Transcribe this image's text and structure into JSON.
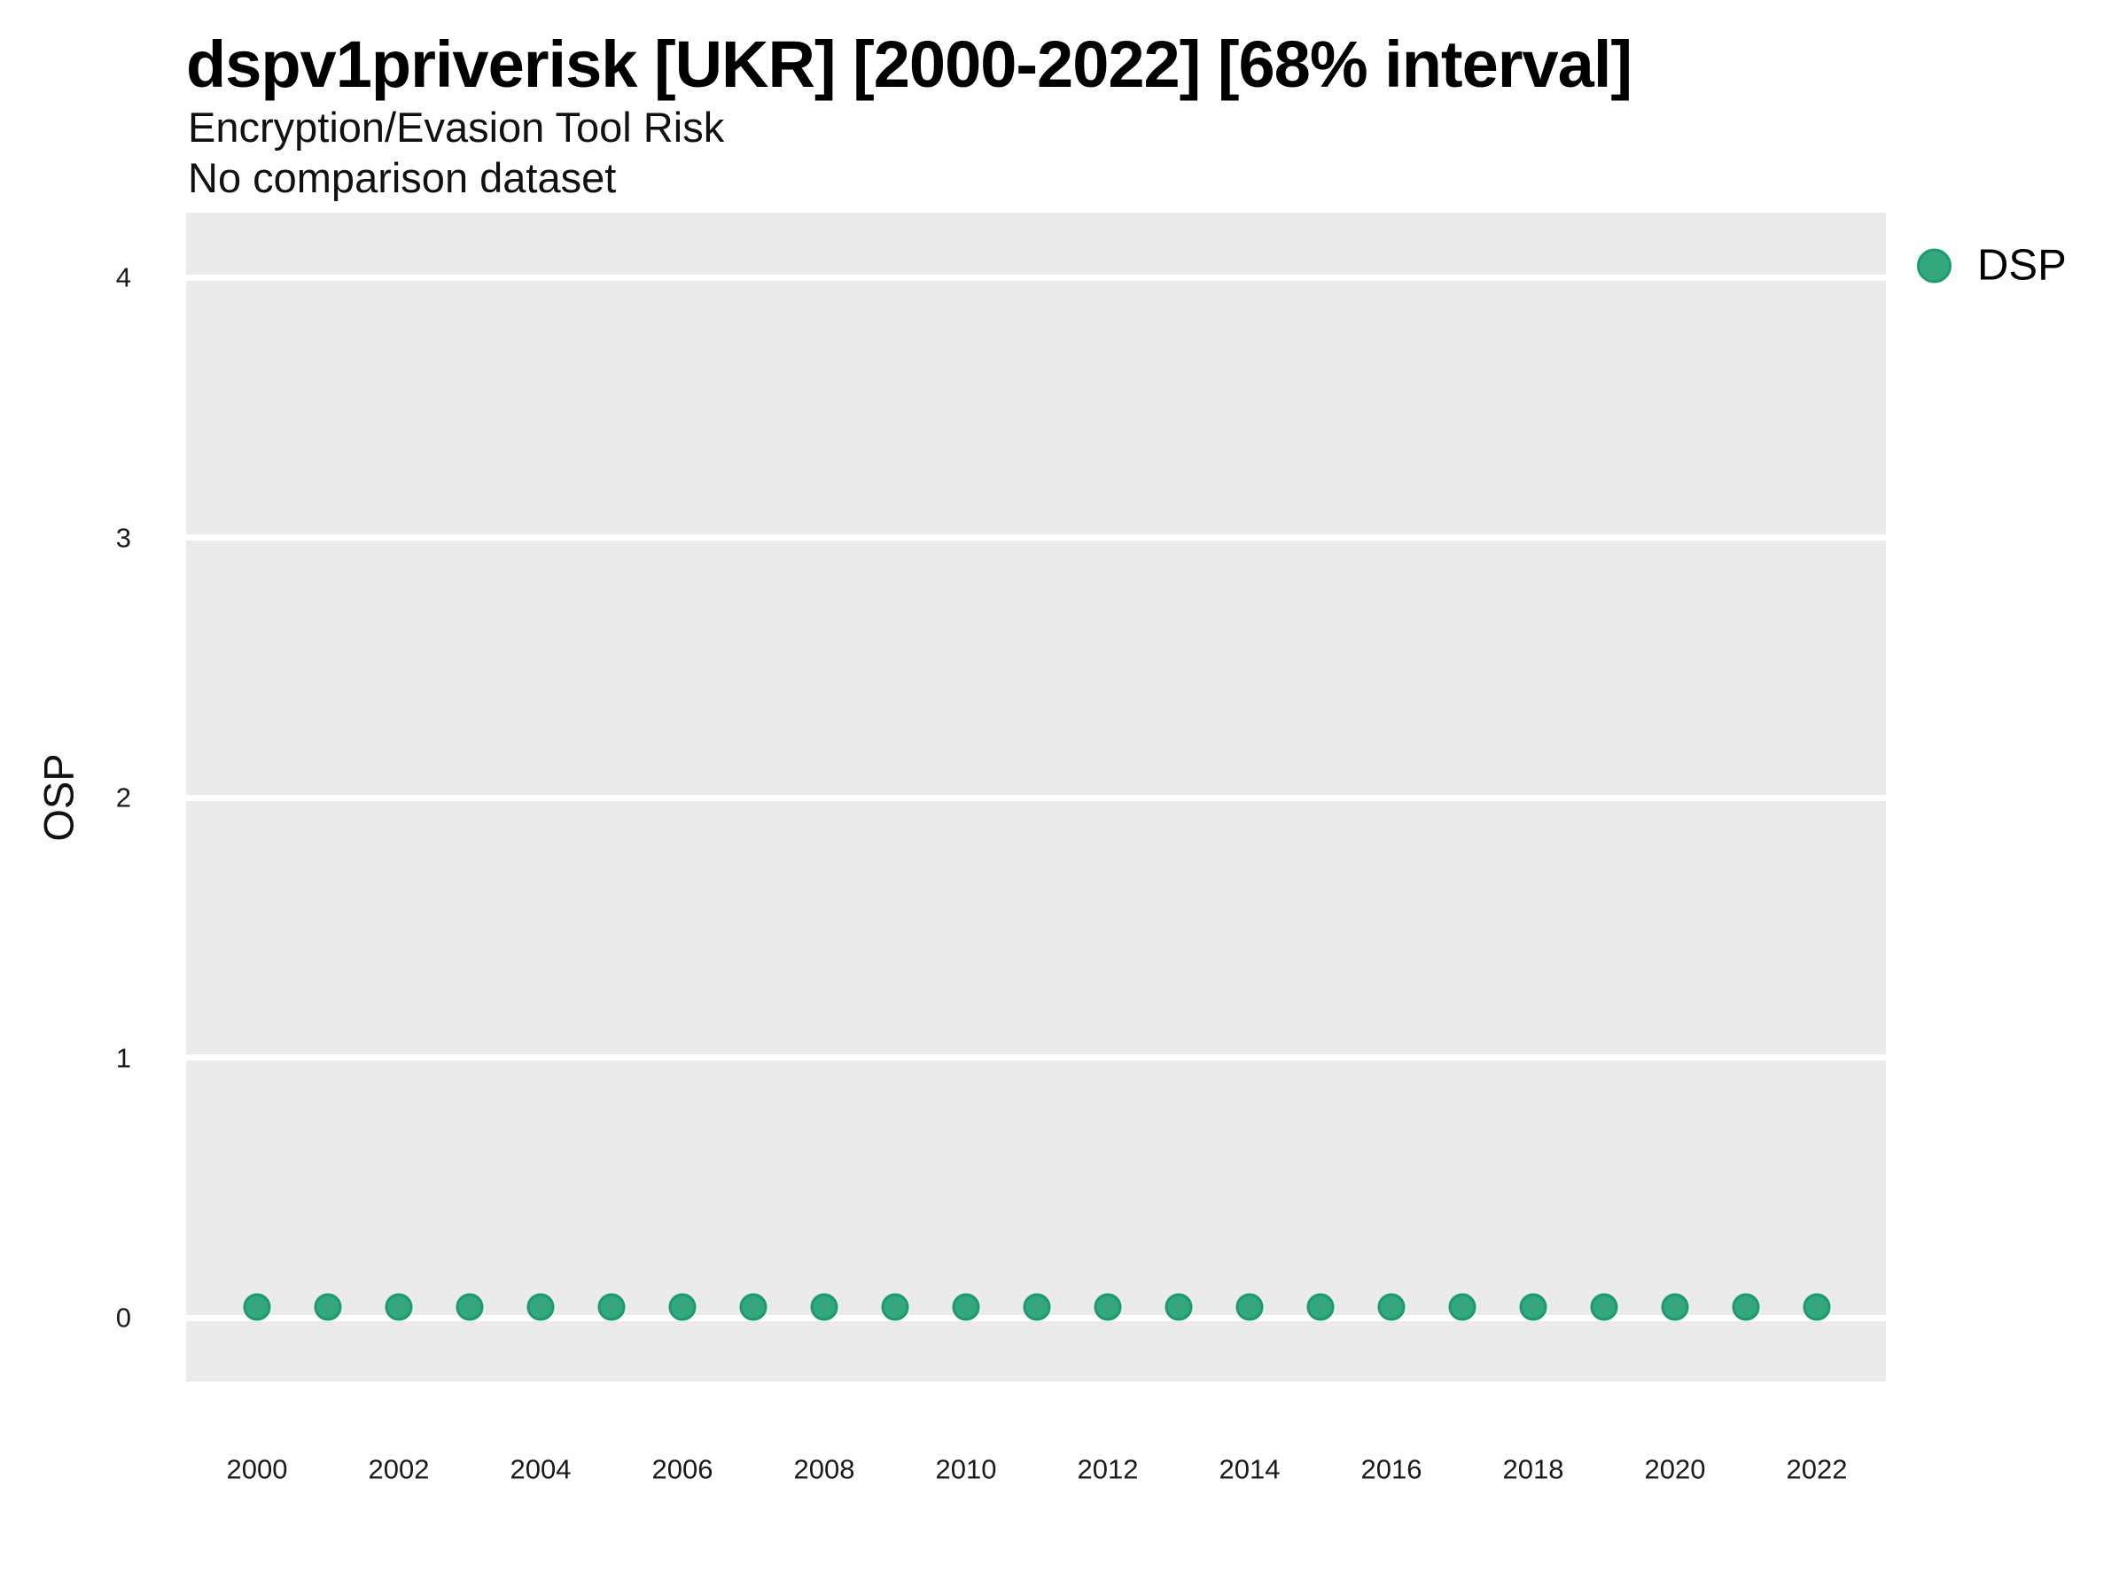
{
  "header": {
    "title": "dspv1priverisk [UKR] [2000-2022] [68% interval]",
    "subtitle": "Encryption/Evasion Tool Risk",
    "comparison_note": "No comparison dataset"
  },
  "legend": {
    "position": "top-right-outside",
    "items": [
      {
        "label": "DSP",
        "swatch_shape": "circle",
        "fill": "#34a87d",
        "stroke": "#1a9c70"
      }
    ]
  },
  "chart_data": {
    "type": "scatter",
    "title": "dspv1priverisk [UKR] [2000-2022] [68% interval]",
    "subtitle": "Encryption/Evasion Tool Risk",
    "note": "No comparison dataset",
    "xlabel": "",
    "ylabel": "OSP",
    "x": [
      2000,
      2001,
      2002,
      2003,
      2004,
      2005,
      2006,
      2007,
      2008,
      2009,
      2010,
      2011,
      2012,
      2013,
      2014,
      2015,
      2016,
      2017,
      2018,
      2019,
      2020,
      2021,
      2022
    ],
    "series": [
      {
        "name": "DSP",
        "values": [
          0.04,
          0.04,
          0.04,
          0.04,
          0.04,
          0.04,
          0.04,
          0.04,
          0.04,
          0.04,
          0.04,
          0.04,
          0.04,
          0.04,
          0.04,
          0.04,
          0.04,
          0.04,
          0.04,
          0.04,
          0.04,
          0.04,
          0.04
        ]
      }
    ],
    "xticks": [
      2000,
      2002,
      2004,
      2006,
      2008,
      2010,
      2012,
      2014,
      2016,
      2018,
      2020,
      2022
    ],
    "yticks": [
      0,
      1,
      2,
      3,
      4
    ],
    "ylim": [
      -0.25,
      4.25
    ],
    "xlim": [
      1999,
      2023
    ],
    "grid": "horizontal-major-only",
    "legend_position": "top-right-outside"
  },
  "colors": {
    "panel_bg": "#ebebeb",
    "gridline": "#ffffff",
    "dot_fill": "#34a87d",
    "dot_stroke": "#1a9c70",
    "text": "#000000",
    "page_bg": "#ffffff"
  }
}
